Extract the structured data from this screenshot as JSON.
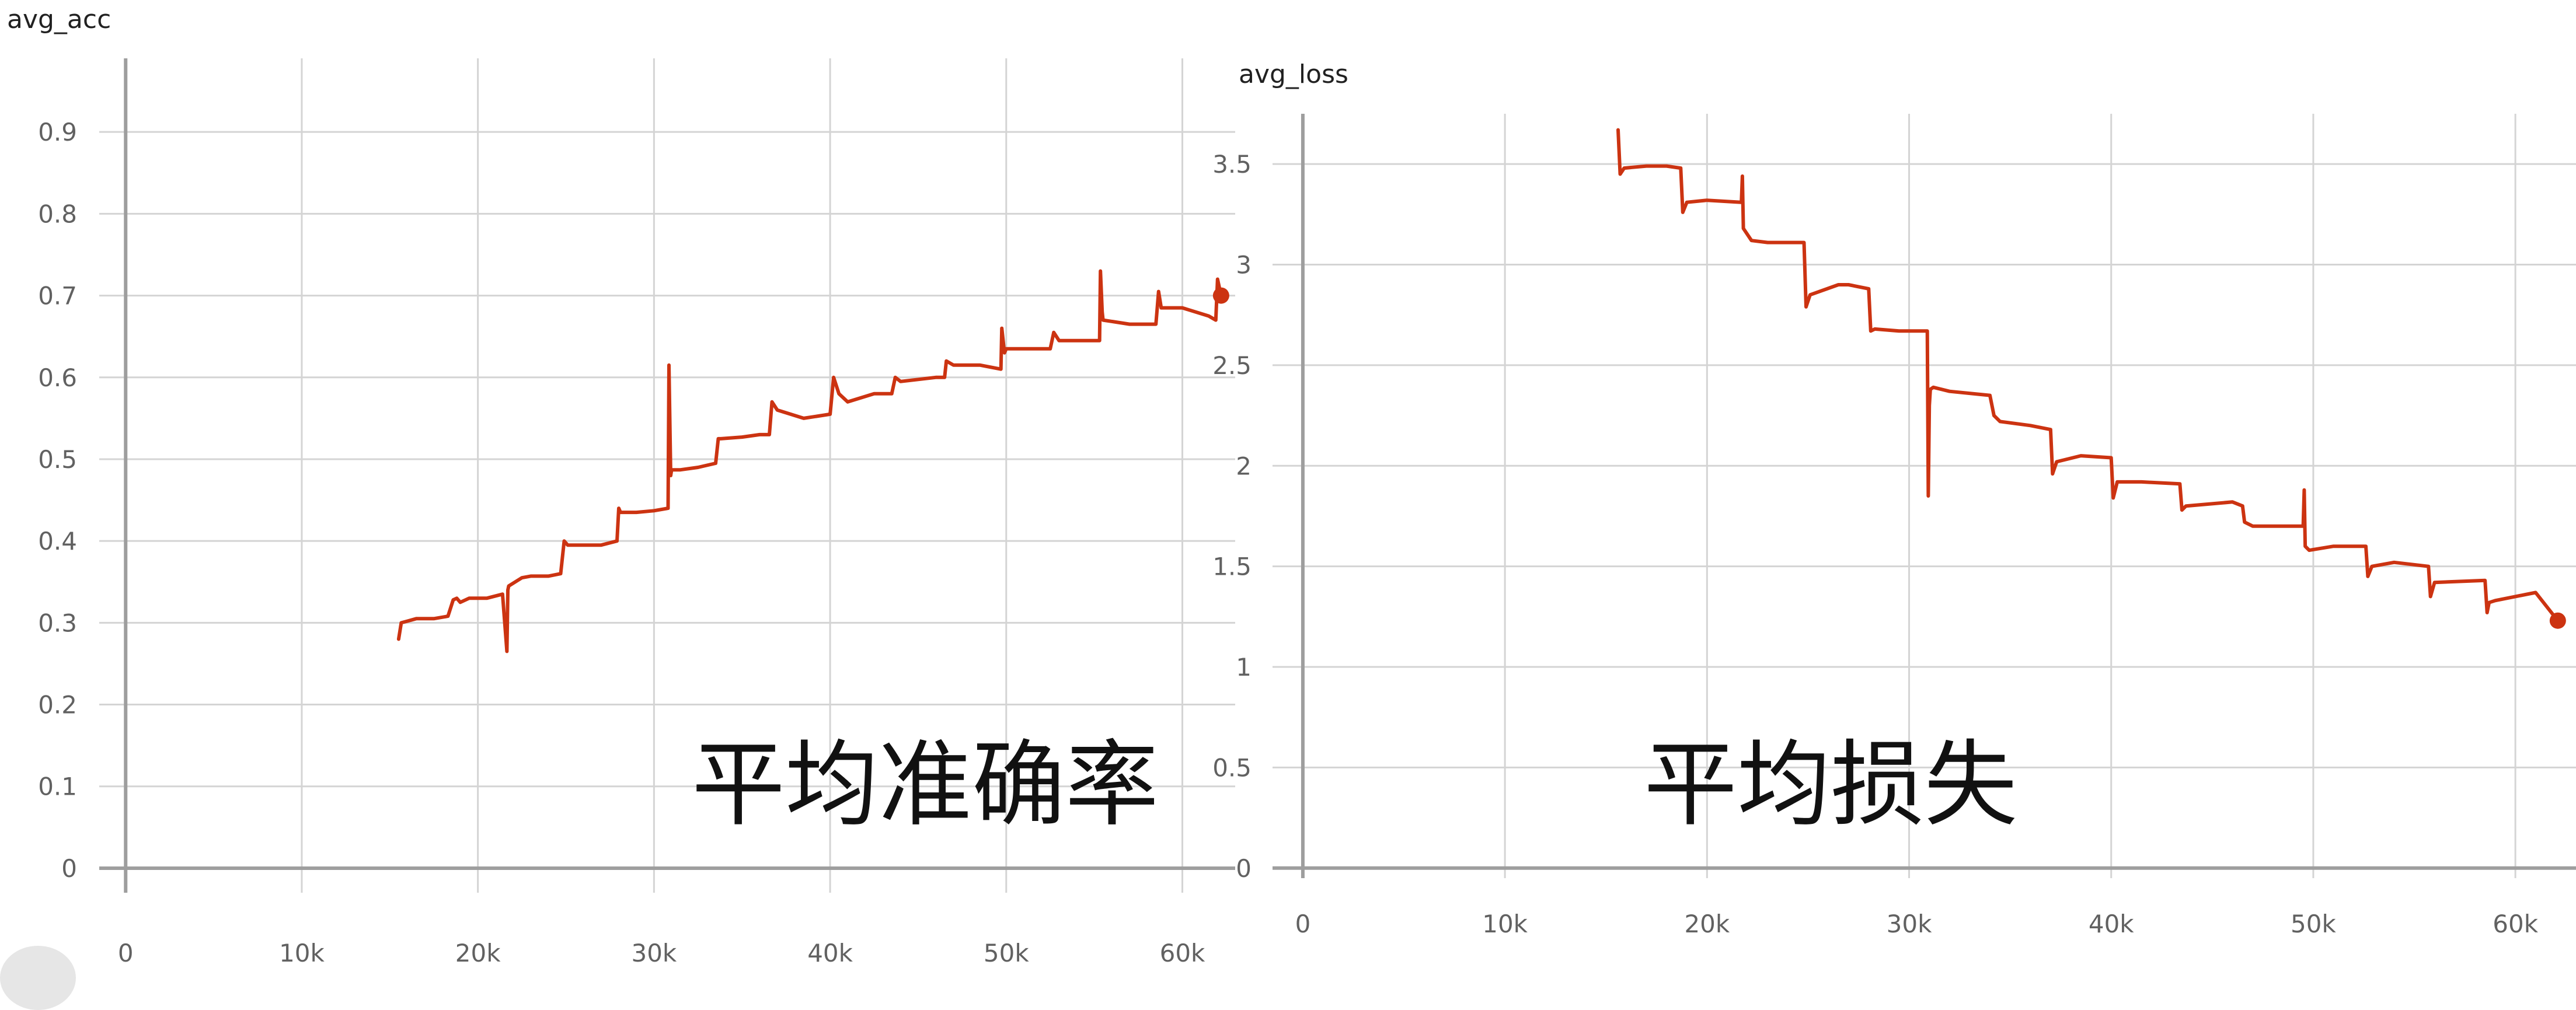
{
  "colors": {
    "series": "#cc3311",
    "grid": "#d4d4d4",
    "axis": "#9e9e9e",
    "text": "#616161"
  },
  "chart_data": [
    {
      "type": "line",
      "title": "avg_acc",
      "annotation": "平均准确率",
      "xlabel": "",
      "ylabel": "",
      "grid": true,
      "xlim": [
        -1500,
        63000
      ],
      "ylim": [
        -0.03,
        0.99
      ],
      "x_ticks": [
        0,
        10000,
        20000,
        30000,
        40000,
        50000,
        60000
      ],
      "x_tick_labels": [
        "0",
        "10k",
        "20k",
        "30k",
        "40k",
        "50k",
        "60k"
      ],
      "y_ticks": [
        0,
        0.1,
        0.2,
        0.3,
        0.4,
        0.5,
        0.6,
        0.7,
        0.8,
        0.9
      ],
      "y_tick_labels": [
        "0",
        "0.1",
        "0.2",
        "0.3",
        "0.4",
        "0.5",
        "0.6",
        "0.7",
        "0.8",
        "0.9"
      ],
      "series": [
        {
          "x": [
            15500,
            15650,
            16000,
            16500,
            17500,
            18300,
            18600,
            18800,
            19000,
            19500,
            20500,
            21400,
            21650,
            21700,
            21750,
            22500,
            23000,
            24000,
            24700,
            24900,
            25100,
            26000,
            27000,
            27900,
            28000,
            28100,
            29000,
            30000,
            30800,
            30850,
            30950,
            31000,
            31500,
            32500,
            33500,
            33650,
            33800,
            35000,
            36000,
            36550,
            36700,
            37000,
            38500,
            40000,
            40200,
            40500,
            41000,
            42500,
            43500,
            43700,
            44000,
            46000,
            46500,
            46600,
            47000,
            48500,
            49700,
            49750,
            49900,
            50000,
            52500,
            52700,
            53000,
            55300,
            55350,
            55450,
            55500,
            57000,
            58500,
            58650,
            58800,
            60000,
            61500,
            61900,
            62000,
            62200
          ],
          "y": [
            0.28,
            0.3,
            0.302,
            0.305,
            0.305,
            0.308,
            0.328,
            0.33,
            0.325,
            0.33,
            0.33,
            0.335,
            0.265,
            0.34,
            0.345,
            0.355,
            0.357,
            0.357,
            0.36,
            0.4,
            0.395,
            0.395,
            0.395,
            0.4,
            0.44,
            0.435,
            0.435,
            0.437,
            0.44,
            0.615,
            0.48,
            0.487,
            0.487,
            0.49,
            0.495,
            0.525,
            0.525,
            0.527,
            0.53,
            0.53,
            0.57,
            0.56,
            0.55,
            0.555,
            0.6,
            0.58,
            0.57,
            0.58,
            0.58,
            0.6,
            0.595,
            0.6,
            0.6,
            0.62,
            0.615,
            0.615,
            0.61,
            0.66,
            0.63,
            0.635,
            0.635,
            0.655,
            0.645,
            0.645,
            0.73,
            0.68,
            0.67,
            0.665,
            0.665,
            0.705,
            0.685,
            0.685,
            0.675,
            0.67,
            0.72,
            0.7
          ]
        }
      ]
    },
    {
      "type": "line",
      "title": "avg_loss",
      "annotation": "平均损失",
      "xlabel": "",
      "ylabel": "",
      "grid": true,
      "xlim": [
        -1500,
        63000
      ],
      "ylim": [
        -0.05,
        3.75
      ],
      "x_ticks": [
        0,
        10000,
        20000,
        30000,
        40000,
        50000,
        60000
      ],
      "x_tick_labels": [
        "0",
        "10k",
        "20k",
        "30k",
        "40k",
        "50k",
        "60k"
      ],
      "y_ticks": [
        0,
        0.5,
        1,
        1.5,
        2,
        2.5,
        3,
        3.5
      ],
      "y_tick_labels": [
        "0",
        "0.5",
        "1",
        "1.5",
        "2",
        "2.5",
        "3",
        "3.5"
      ],
      "series": [
        {
          "x": [
            15600,
            15700,
            15900,
            17000,
            18000,
            18700,
            18800,
            19000,
            20000,
            21700,
            21750,
            21800,
            22200,
            23000,
            24800,
            24900,
            25100,
            26500,
            27000,
            28000,
            28100,
            28300,
            29500,
            30900,
            30950,
            31000,
            31050,
            31200,
            32000,
            34000,
            34200,
            34500,
            36000,
            37000,
            37100,
            37300,
            38500,
            40000,
            40100,
            40300,
            41500,
            43400,
            43500,
            43700,
            46000,
            46500,
            46600,
            47000,
            49500,
            49550,
            49600,
            49800,
            51000,
            52600,
            52700,
            52900,
            54000,
            55700,
            55800,
            56000,
            58500,
            58600,
            58700,
            59000,
            61000,
            62100
          ],
          "y": [
            3.67,
            3.45,
            3.48,
            3.49,
            3.49,
            3.48,
            3.26,
            3.31,
            3.32,
            3.31,
            3.44,
            3.18,
            3.12,
            3.11,
            3.11,
            2.79,
            2.85,
            2.9,
            2.9,
            2.88,
            2.67,
            2.68,
            2.67,
            2.67,
            1.85,
            2.3,
            2.38,
            2.39,
            2.37,
            2.35,
            2.25,
            2.22,
            2.2,
            2.18,
            1.96,
            2.02,
            2.05,
            2.04,
            1.84,
            1.92,
            1.92,
            1.91,
            1.78,
            1.8,
            1.82,
            1.8,
            1.72,
            1.7,
            1.7,
            1.88,
            1.6,
            1.58,
            1.6,
            1.6,
            1.45,
            1.5,
            1.52,
            1.5,
            1.35,
            1.42,
            1.43,
            1.27,
            1.32,
            1.33,
            1.37,
            1.23
          ]
        }
      ]
    }
  ]
}
